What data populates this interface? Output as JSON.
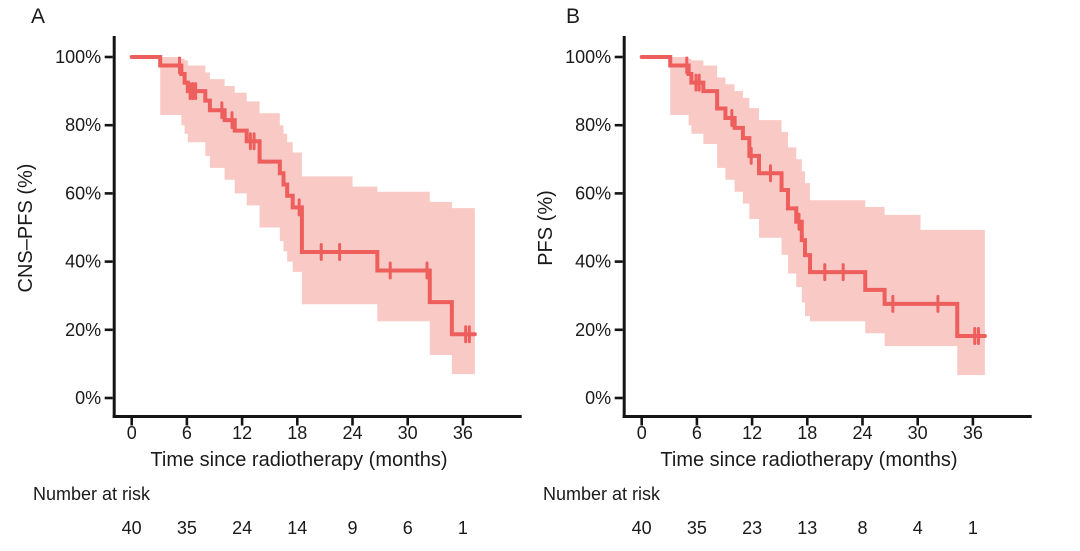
{
  "figure": {
    "background": "#ffffff",
    "curve_color": "#ed5e5c",
    "band_color": "#f9c9c6",
    "axis_color": "#141414",
    "text_color": "#1a1a1a"
  },
  "chart_data": [
    {
      "type": "line",
      "panel_label": "A",
      "ylabel": "CNS–PFS (%)",
      "xlabel": "Time since radiotherapy (months)",
      "xticks": [
        0,
        6,
        12,
        18,
        24,
        30,
        36
      ],
      "xtick_labels": [
        "0",
        "6",
        "12",
        "18",
        "24",
        "30",
        "36"
      ],
      "yticks": [
        0,
        20,
        40,
        60,
        80,
        100
      ],
      "ytick_labels": [
        "0%",
        "20%",
        "40%",
        "60%",
        "80%",
        "100%"
      ],
      "xlim": [
        0,
        42
      ],
      "ylim": [
        0,
        100
      ],
      "grid": false,
      "legend": "none",
      "risk_label": "Number at risk",
      "number_at_risk": [
        40,
        35,
        24,
        14,
        9,
        6,
        1
      ],
      "km_steps": [
        [
          0,
          100
        ],
        [
          3.1,
          97.5
        ],
        [
          5.4,
          95
        ],
        [
          5.75,
          92.5
        ],
        [
          6.1,
          90
        ],
        [
          8.0,
          87.2
        ],
        [
          8.5,
          84.4
        ],
        [
          10.1,
          81.5
        ],
        [
          11.2,
          78.4
        ],
        [
          12.5,
          75.3
        ],
        [
          13.9,
          69.3
        ],
        [
          16.1,
          65.9
        ],
        [
          16.5,
          62.6
        ],
        [
          16.9,
          59.3
        ],
        [
          17.5,
          55.9
        ],
        [
          18.5,
          42.8
        ],
        [
          26.7,
          37.4
        ],
        [
          32.4,
          28.1
        ],
        [
          34.8,
          18.7
        ],
        [
          37.3,
          18.7
        ]
      ],
      "censor_times": [
        5.2,
        6.35,
        6.65,
        6.95,
        9.8,
        10.9,
        12.9,
        13.3,
        18.2,
        20.6,
        22.6,
        28.1,
        32.1,
        36.3,
        36.7
      ],
      "confidence_band": [
        [
          3.1,
          83,
          100
        ],
        [
          5.4,
          80,
          99.5
        ],
        [
          5.75,
          77.5,
          99
        ],
        [
          6.1,
          75,
          97.5
        ],
        [
          8.0,
          71,
          95.5
        ],
        [
          8.5,
          67.5,
          93.5
        ],
        [
          10.1,
          64,
          91.5
        ],
        [
          11.2,
          60,
          89.5
        ],
        [
          12.5,
          56.5,
          87
        ],
        [
          13.9,
          50,
          83.5
        ],
        [
          16.1,
          46,
          80
        ],
        [
          16.5,
          43,
          77.5
        ],
        [
          16.9,
          40,
          75
        ],
        [
          17.5,
          37,
          72
        ],
        [
          18.5,
          27.5,
          65
        ],
        [
          24.0,
          27.5,
          62
        ],
        [
          26.7,
          22.5,
          60.5
        ],
        [
          32.4,
          12.6,
          57.5
        ],
        [
          34.8,
          7,
          55.7
        ]
      ],
      "band_end": 37.3
    },
    {
      "type": "line",
      "panel_label": "B",
      "ylabel": "PFS (%)",
      "xlabel": "Time since radiotherapy (months)",
      "xticks": [
        0,
        6,
        12,
        18,
        24,
        30,
        36
      ],
      "xtick_labels": [
        "0",
        "6",
        "12",
        "18",
        "24",
        "30",
        "36"
      ],
      "yticks": [
        0,
        20,
        40,
        60,
        80,
        100
      ],
      "ytick_labels": [
        "0%",
        "20%",
        "40%",
        "60%",
        "80%",
        "100%"
      ],
      "xlim": [
        0,
        42
      ],
      "ylim": [
        0,
        100
      ],
      "grid": false,
      "legend": "none",
      "risk_label": "Number at risk",
      "number_at_risk": [
        40,
        35,
        23,
        13,
        8,
        4,
        1
      ],
      "km_steps": [
        [
          0,
          100
        ],
        [
          3.1,
          97.5
        ],
        [
          5.1,
          95
        ],
        [
          5.4,
          92.5
        ],
        [
          6.7,
          90
        ],
        [
          8.2,
          84.9
        ],
        [
          9.1,
          82.1
        ],
        [
          10.1,
          79.2
        ],
        [
          11.0,
          76.2
        ],
        [
          11.7,
          71.0
        ],
        [
          12.75,
          65.9
        ],
        [
          15.2,
          61.0
        ],
        [
          15.9,
          55.6
        ],
        [
          16.8,
          51.7
        ],
        [
          17.4,
          46.3
        ],
        [
          17.75,
          41.9
        ],
        [
          18.3,
          36.9
        ],
        [
          24.3,
          31.7
        ],
        [
          26.4,
          27.6
        ],
        [
          34.3,
          18.2
        ],
        [
          37.3,
          18.2
        ]
      ],
      "censor_times": [
        4.9,
        5.9,
        6.25,
        9.8,
        11.9,
        14.0,
        17.1,
        19.9,
        21.9,
        27.3,
        32.2,
        36.2,
        36.6
      ],
      "confidence_band": [
        [
          3.1,
          83,
          100
        ],
        [
          5.1,
          80,
          99.5
        ],
        [
          5.4,
          77.5,
          99
        ],
        [
          6.7,
          74.5,
          97.5
        ],
        [
          8.2,
          67.5,
          94
        ],
        [
          9.1,
          64,
          92
        ],
        [
          10.1,
          60.5,
          90
        ],
        [
          11.0,
          57,
          88
        ],
        [
          11.7,
          52.5,
          85
        ],
        [
          12.75,
          47,
          81.5
        ],
        [
          15.2,
          42,
          78
        ],
        [
          15.9,
          36.5,
          73.5
        ],
        [
          16.8,
          32.5,
          70
        ],
        [
          17.4,
          28,
          66.5
        ],
        [
          17.75,
          24,
          63
        ],
        [
          18.3,
          22.5,
          58
        ],
        [
          24.3,
          19,
          56
        ],
        [
          26.4,
          15.2,
          53.7
        ],
        [
          30.3,
          15.2,
          49.3
        ],
        [
          34.3,
          6.7,
          49.3
        ]
      ],
      "band_end": 37.3
    }
  ]
}
